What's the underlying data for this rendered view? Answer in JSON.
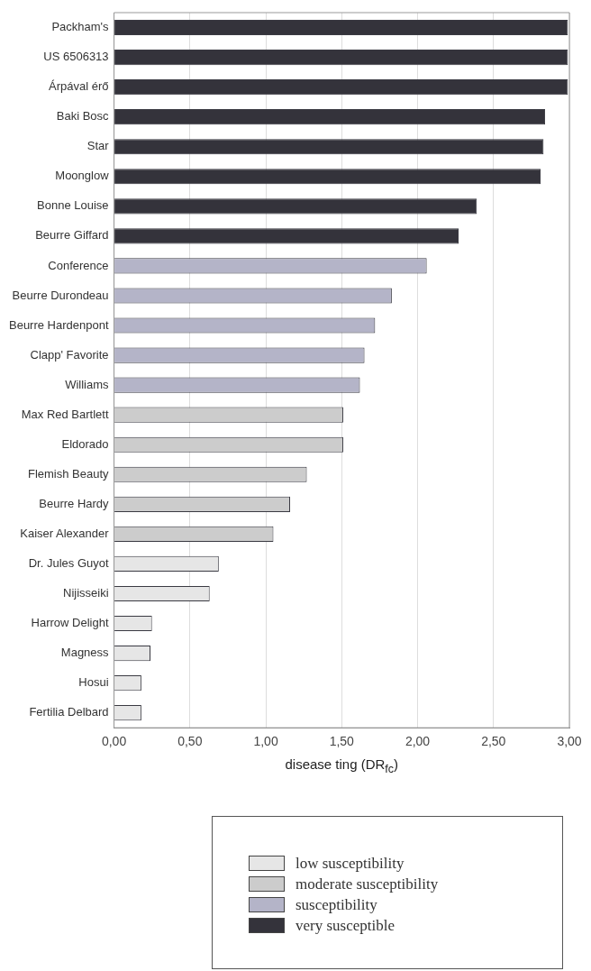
{
  "chart_data": {
    "type": "bar",
    "orientation": "horizontal",
    "xlabel": "disease ting (DR$_{fc}$)",
    "categories": [
      "Packham's",
      "US 6506313",
      "Árpával érő",
      "Baki Bosc",
      "Star",
      "Moonglow",
      "Bonne Louise",
      "Beurre Giffard",
      "Conference",
      "Beurre Durondeau",
      "Beurre Hardenpont",
      "Clapp' Favorite",
      "Williams",
      "Max Red Bartlett",
      "Eldorado",
      "Flemish Beauty",
      "Beurre Hardy",
      "Kaiser Alexander",
      "Dr. Jules Guyot",
      "Nijisseiki",
      "Harrow Delight",
      "Magness",
      "Hosui",
      "Fertilia Delbard"
    ],
    "series": [
      {
        "name": "low susceptibility",
        "color": "#e6e6e6",
        "values": [
          null,
          null,
          null,
          null,
          null,
          null,
          null,
          null,
          null,
          null,
          null,
          null,
          null,
          null,
          null,
          null,
          null,
          null,
          0.69,
          0.63,
          0.25,
          0.24,
          0.18,
          0.18
        ]
      },
      {
        "name": "moderate susceptibility",
        "color": "#cccccc",
        "values": [
          null,
          null,
          null,
          null,
          null,
          null,
          null,
          null,
          null,
          null,
          null,
          null,
          null,
          1.51,
          1.51,
          1.27,
          1.16,
          1.05,
          null,
          null,
          null,
          null,
          null,
          null
        ]
      },
      {
        "name": "susceptibility",
        "color": "#b4b4c8",
        "values": [
          null,
          null,
          null,
          null,
          null,
          null,
          null,
          null,
          2.06,
          1.83,
          1.72,
          1.65,
          1.62,
          null,
          null,
          null,
          null,
          null,
          null,
          null,
          null,
          null,
          null,
          null
        ]
      },
      {
        "name": "very susceptible",
        "color": "#34333b",
        "values": [
          2.99,
          2.99,
          2.99,
          2.84,
          2.83,
          2.81,
          2.39,
          2.27,
          null,
          null,
          null,
          null,
          null,
          null,
          null,
          null,
          null,
          null,
          null,
          null,
          null,
          null,
          null,
          null
        ]
      }
    ],
    "xlim": [
      0,
      3
    ],
    "xticks": [
      {
        "value": 0,
        "label": "0,00"
      },
      {
        "value": 0.5,
        "label": "0,50"
      },
      {
        "value": 1,
        "label": "1,00"
      },
      {
        "value": 1.5,
        "label": "1,50"
      },
      {
        "value": 2,
        "label": "2,00"
      },
      {
        "value": 2.5,
        "label": "2,50"
      },
      {
        "value": 3,
        "label": "3,00"
      }
    ],
    "grid": "x",
    "legend": "bottom"
  }
}
